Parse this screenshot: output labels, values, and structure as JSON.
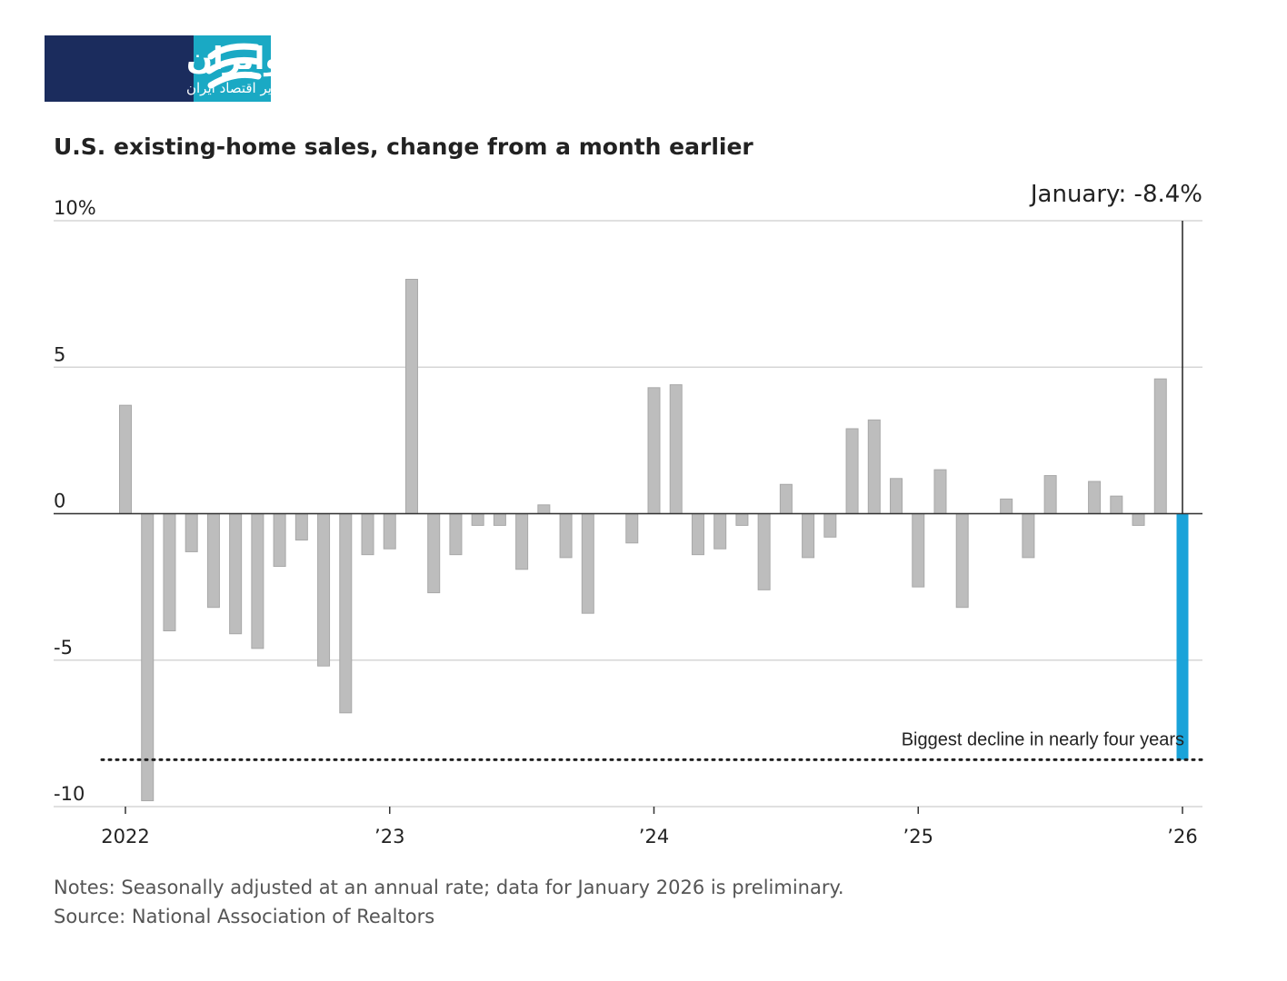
{
  "logo": {
    "title": "اکوایران",
    "subtitle": "تصویر اقتصاد ایران"
  },
  "chart_data": {
    "type": "bar",
    "title": "U.S. existing-home sales, change from a month earlier",
    "annotation": "January: -8.4%",
    "reference_line": {
      "value": -8.4,
      "label": "Biggest decline in nearly four years"
    },
    "categories": [
      "2022",
      null,
      null,
      null,
      null,
      null,
      null,
      null,
      null,
      null,
      null,
      null,
      "’23",
      null,
      null,
      null,
      null,
      null,
      null,
      null,
      null,
      null,
      null,
      null,
      "’24",
      null,
      null,
      null,
      null,
      null,
      null,
      null,
      null,
      null,
      null,
      null,
      "’25",
      null,
      null,
      null,
      null,
      null,
      null,
      null,
      null,
      null,
      null,
      null,
      "’26"
    ],
    "values": [
      3.7,
      -9.8,
      -4.0,
      -1.3,
      -3.2,
      -4.1,
      -4.6,
      -1.8,
      -0.9,
      -5.2,
      -6.8,
      -1.4,
      -1.2,
      8.0,
      -2.7,
      -1.4,
      -0.4,
      -0.4,
      -1.9,
      0.3,
      -1.5,
      -3.4,
      0,
      -1.0,
      4.3,
      4.4,
      -1.4,
      -1.2,
      -0.4,
      -2.6,
      1.0,
      -1.5,
      -0.8,
      2.9,
      3.2,
      1.2,
      -2.5,
      1.5,
      -3.2,
      0,
      0.5,
      -1.5,
      1.3,
      0,
      1.1,
      0.6,
      -0.4,
      4.6,
      -8.4
    ],
    "colors": [
      "#bdbdbd",
      "#bdbdbd",
      "#bdbdbd",
      "#bdbdbd",
      "#bdbdbd",
      "#bdbdbd",
      "#bdbdbd",
      "#bdbdbd",
      "#bdbdbd",
      "#bdbdbd",
      "#bdbdbd",
      "#bdbdbd",
      "#bdbdbd",
      "#bdbdbd",
      "#bdbdbd",
      "#bdbdbd",
      "#bdbdbd",
      "#bdbdbd",
      "#bdbdbd",
      "#bdbdbd",
      "#bdbdbd",
      "#bdbdbd",
      "#bdbdbd",
      "#bdbdbd",
      "#bdbdbd",
      "#bdbdbd",
      "#bdbdbd",
      "#bdbdbd",
      "#bdbdbd",
      "#bdbdbd",
      "#bdbdbd",
      "#bdbdbd",
      "#bdbdbd",
      "#bdbdbd",
      "#bdbdbd",
      "#bdbdbd",
      "#bdbdbd",
      "#bdbdbd",
      "#bdbdbd",
      "#bdbdbd",
      "#bdbdbd",
      "#bdbdbd",
      "#bdbdbd",
      "#bdbdbd",
      "#bdbdbd",
      "#bdbdbd",
      "#bdbdbd",
      "#bdbdbd",
      "#1aa3d9"
    ],
    "ylim": [
      -10,
      10
    ],
    "yticks": [
      {
        "value": 10,
        "label": "10%"
      },
      5,
      0,
      -5,
      -10
    ],
    "grid": true,
    "notes": "Notes: Seasonally adjusted at an annual rate; data for January 2026 is preliminary.",
    "source": "Source: National Association of Realtors"
  }
}
